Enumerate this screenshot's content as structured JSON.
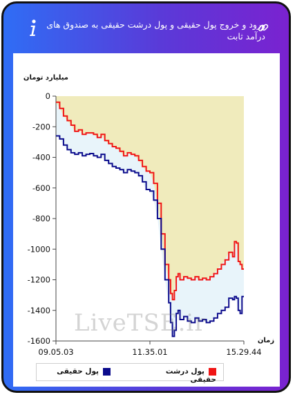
{
  "header": {
    "title": "ورود و خروج پول حقیقی و پول درشت حقیقی به صندوق های درآمد ثابت"
  },
  "watermark": "LiveTSE.ir",
  "colors": {
    "header_gradient_start": "#2f6df5",
    "header_gradient_end": "#7a22d0",
    "area_fill": "#f0ebbc",
    "band_fill": "#e8f4fa",
    "series_real_money": "#0b0b8c",
    "series_large_real_money": "#f01515"
  },
  "chart_data": {
    "type": "line",
    "ylabel": "میلیارد تومان",
    "xlabel": "زمان",
    "ylim": [
      -1600,
      0
    ],
    "yticks": [
      "0",
      "-200",
      "-400",
      "-600",
      "-800",
      "-1000",
      "-1200",
      "-1400",
      "-1600"
    ],
    "ytick_values": [
      0,
      -200,
      -400,
      -600,
      -800,
      -1000,
      -1200,
      -1400,
      -1600
    ],
    "xticks": [
      "09.05.03",
      "11.35.01",
      "15.29.44"
    ],
    "xtick_positions": [
      0,
      0.5,
      1
    ],
    "grid": false,
    "legend_position": "bottom",
    "x": [
      0,
      0.02,
      0.04,
      0.06,
      0.08,
      0.1,
      0.12,
      0.14,
      0.16,
      0.18,
      0.2,
      0.22,
      0.24,
      0.26,
      0.28,
      0.3,
      0.32,
      0.34,
      0.36,
      0.38,
      0.4,
      0.42,
      0.44,
      0.46,
      0.48,
      0.5,
      0.52,
      0.54,
      0.56,
      0.58,
      0.6,
      0.61,
      0.62,
      0.63,
      0.64,
      0.65,
      0.66,
      0.68,
      0.7,
      0.72,
      0.74,
      0.76,
      0.78,
      0.8,
      0.82,
      0.84,
      0.86,
      0.88,
      0.9,
      0.92,
      0.94,
      0.95,
      0.96,
      0.97,
      0.98,
      0.99,
      1.0
    ],
    "series": [
      {
        "name": "پول حقیقی",
        "color": "#0b0b8c",
        "values": [
          -260,
          -280,
          -320,
          -350,
          -370,
          -380,
          -370,
          -390,
          -380,
          -375,
          -390,
          -400,
          -380,
          -420,
          -440,
          -460,
          -470,
          -480,
          -500,
          -480,
          -490,
          -500,
          -520,
          -560,
          -610,
          -620,
          -680,
          -800,
          -1000,
          -1200,
          -1350,
          -1480,
          -1570,
          -1530,
          -1420,
          -1400,
          -1460,
          -1440,
          -1470,
          -1480,
          -1450,
          -1470,
          -1460,
          -1480,
          -1470,
          -1450,
          -1420,
          -1400,
          -1380,
          -1320,
          -1330,
          -1310,
          -1320,
          -1400,
          -1420,
          -1310,
          -1310
        ]
      },
      {
        "name": "پول درشت حقیقی",
        "color": "#f01515",
        "values": [
          -40,
          -80,
          -130,
          -160,
          -190,
          -230,
          -220,
          -250,
          -240,
          -240,
          -250,
          -270,
          -250,
          -290,
          -310,
          -330,
          -340,
          -360,
          -390,
          -370,
          -380,
          -390,
          -420,
          -460,
          -490,
          -500,
          -570,
          -700,
          -900,
          -1100,
          -1200,
          -1290,
          -1330,
          -1270,
          -1180,
          -1160,
          -1200,
          -1180,
          -1190,
          -1200,
          -1180,
          -1200,
          -1190,
          -1200,
          -1180,
          -1160,
          -1130,
          -1100,
          -1070,
          -1020,
          -1050,
          -950,
          -960,
          -1080,
          -1100,
          -1130,
          -1130
        ]
      }
    ]
  }
}
